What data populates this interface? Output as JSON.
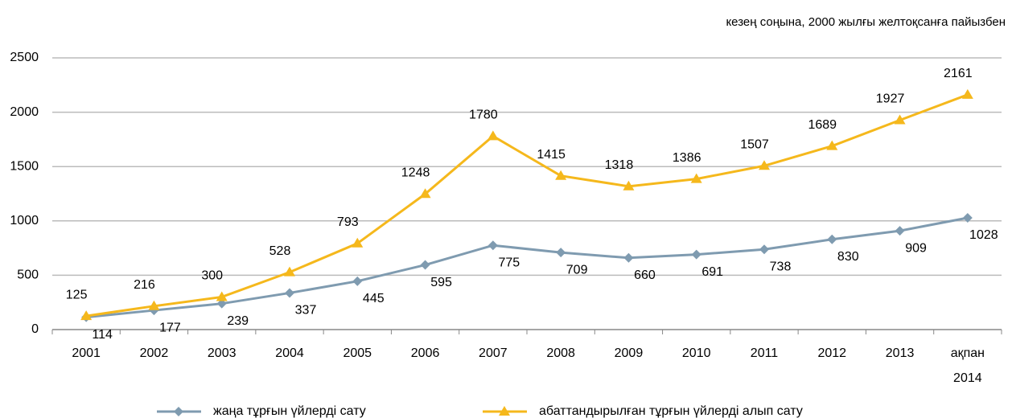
{
  "chart_data": {
    "type": "line",
    "subtitle": "кезең соңына, 2000 жылғы желтоқсанға пайызбен",
    "categories": [
      "2001",
      "2002",
      "2003",
      "2004",
      "2005",
      "2006",
      "2007",
      "2008",
      "2009",
      "2010",
      "2011",
      "2012",
      "2013",
      "ақпан 2014"
    ],
    "series": [
      {
        "name": "жаңа тұрғын үйлерді сату",
        "color": "#7f9bb0",
        "marker": "diamond",
        "values": [
          114,
          177,
          239,
          337,
          445,
          595,
          775,
          709,
          660,
          691,
          738,
          830,
          909,
          1028
        ]
      },
      {
        "name": "абаттандырылған тұрғын үйлерді алып сату",
        "color": "#f5b81c",
        "marker": "triangle",
        "values": [
          125,
          216,
          300,
          528,
          793,
          1248,
          1780,
          1415,
          1318,
          1386,
          1507,
          1689,
          1927,
          2161
        ]
      }
    ],
    "ylim": [
      0,
      2500
    ],
    "yticks": [
      0,
      500,
      1000,
      1500,
      2000,
      2500
    ],
    "grid": true
  }
}
